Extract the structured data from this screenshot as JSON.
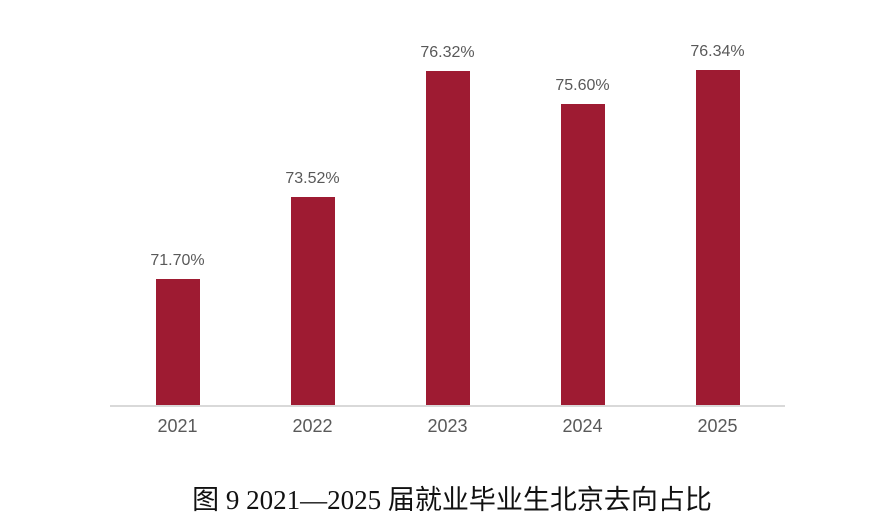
{
  "page": {
    "background": "#ffffff"
  },
  "chart_data": {
    "type": "bar",
    "categories": [
      "2021",
      "2022",
      "2023",
      "2024",
      "2025"
    ],
    "values": [
      71.7,
      73.52,
      76.32,
      75.6,
      76.34
    ],
    "value_labels": [
      "71.70%",
      "73.52%",
      "76.32%",
      "75.60%",
      "76.34%"
    ],
    "title": "图 9  2021—2025 届就业毕业生北京去向占比",
    "xlabel": "",
    "ylabel": "",
    "ylim": [
      68.9,
      77.9
    ],
    "grid": false,
    "legend": "none",
    "bar_color": "#9E1B32",
    "value_label_color": "#595959",
    "tick_label_color": "#595959",
    "axis_line_color": "#D9D9D9"
  },
  "caption": {
    "text": "图 9  2021—2025 届就业毕业生北京去向占比"
  }
}
